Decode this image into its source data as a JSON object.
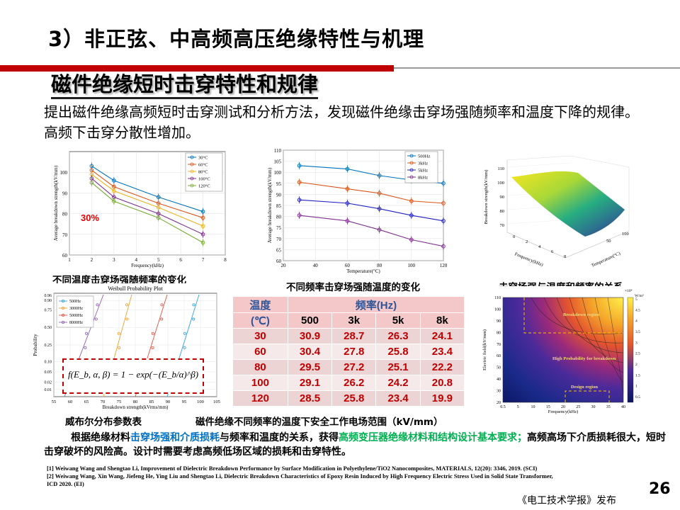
{
  "title": "3）非正弦、中高频高压绝缘特性与机理",
  "subtitle": "磁件绝缘短时击穿特性和规律",
  "intro": "提出磁件绝缘高频短时击穿测试和分析方法，发现磁件绝缘击穿场强随频率和温度下降的规律。高频下击穿分散性增加。",
  "captions": {
    "c1": "不同温度击穿场强随频率的变化",
    "c2": "不同频率击穿场强随温度的变化",
    "c3": "击穿场强与温度和频率的关系",
    "c4": "威布尔分布参数表",
    "c5": "磁件绝缘不同频率的温度下安全工作电场范围（kV/mm）"
  },
  "chart_data": [
    {
      "type": "line",
      "ylabel": "Average breakdown strength(kV/mm)",
      "xlabel": "Frequency(kHz)",
      "xlim": [
        1,
        8
      ],
      "ylim": [
        60,
        110
      ],
      "xticks": [
        "1",
        "2",
        "3",
        "4",
        "5",
        "6",
        "7",
        "8"
      ],
      "yticks": [
        "60",
        "70",
        "80",
        "90",
        "100"
      ],
      "x": [
        2,
        3,
        5,
        7
      ],
      "series": [
        {
          "name": "30°C",
          "color": "#0072bd",
          "values": [
            103,
            96,
            88,
            81
          ]
        },
        {
          "name": "60°C",
          "color": "#d95319",
          "values": [
            101,
            93,
            85,
            78
          ]
        },
        {
          "name": "80°C",
          "color": "#edb120",
          "values": [
            99,
            91,
            83,
            74
          ]
        },
        {
          "name": "100°C",
          "color": "#7e2f8e",
          "values": [
            97,
            88,
            80,
            70
          ]
        },
        {
          "name": "120°C",
          "color": "#77ac30",
          "values": [
            95,
            86,
            78,
            66
          ]
        }
      ],
      "annotation": "30%"
    },
    {
      "type": "line",
      "ylabel": "Average breakdown strength(kV/mm)",
      "xlabel": "Temperature(°C)",
      "xlim": [
        20,
        120
      ],
      "ylim": [
        60,
        110
      ],
      "xticks": [
        "20",
        "40",
        "60",
        "80",
        "100",
        "120"
      ],
      "yticks": [
        "60",
        "65",
        "70",
        "75",
        "80",
        "85",
        "90",
        "95",
        "100",
        "105",
        "110"
      ],
      "x": [
        30,
        60,
        80,
        100,
        120
      ],
      "series": [
        {
          "name": "500Hz",
          "color": "#0072bd",
          "values": [
            103,
            101.5,
            98.5,
            96.5,
            95
          ]
        },
        {
          "name": "3kHz",
          "color": "#d95319",
          "values": [
            95.5,
            92.5,
            90.5,
            87,
            86
          ]
        },
        {
          "name": "5kHz",
          "color": "#2020c0",
          "values": [
            87.5,
            86,
            83.5,
            80.5,
            78
          ]
        },
        {
          "name": "8kHz",
          "color": "#7e2f8e",
          "values": [
            80.5,
            78,
            74,
            69.5,
            66.5
          ]
        }
      ]
    },
    {
      "type": "surface",
      "zlabel": "Breakdown strength(kV/mm)",
      "xlabel": "Temperature(°C)",
      "ylabel": "Frequency(kHz)",
      "zticks": [
        "70",
        "80",
        "90",
        "100",
        "110"
      ],
      "xticks": [
        "50",
        "100"
      ],
      "yticks": [
        "0",
        "2",
        "4",
        "6",
        "8"
      ]
    },
    {
      "type": "scatter",
      "title": "Weibull Probability Plot",
      "xlabel": "Breakdown strength(kVrms/mm)",
      "ylabel": "Probability",
      "xticks": [
        "55",
        "60",
        "65",
        "70",
        "75",
        "80",
        "85",
        "90",
        "95",
        "100",
        "105"
      ],
      "yticks": [
        "0.96",
        "0.90",
        "0.75",
        "0.50",
        "0.25",
        "0.10",
        "0.05",
        "0.02",
        "0.01"
      ],
      "series": [
        {
          "name": "500Hz",
          "color": "#30a0e0"
        },
        {
          "name": "3000Hz",
          "color": "#f0a030"
        },
        {
          "name": "5000Hz",
          "color": "#e05040"
        },
        {
          "name": "8000Hz",
          "color": "#9060b0"
        }
      ]
    },
    {
      "type": "heatmap",
      "xlabel": "Frequency(kHz)",
      "ylabel": "Electric field(kV/mm)",
      "xticks": [
        "0.5",
        "5",
        "10",
        "15",
        "20",
        "25",
        "30",
        "35",
        "40"
      ],
      "yticks": [
        "20",
        "30",
        "40",
        "50",
        "60",
        "70",
        "80",
        "90",
        "100",
        "110"
      ],
      "colorbar": [
        "0.5",
        "1",
        "1.5",
        "2",
        "2.5",
        "3",
        "3.5",
        "4",
        "4.5",
        "5"
      ],
      "colorbar_unit": "W/m³",
      "colorbar_exp": "×10⁴",
      "labels": [
        "Breakdown region",
        "High Probability for breakdown",
        "Design region"
      ]
    }
  ],
  "formula": "f(E_b, α, β) = 1 − exp(−(E_b/α)^β)",
  "table": {
    "temp_header": "温度",
    "temp_unit": "(℃)",
    "freq_header": "频率(Hz)",
    "freqs": [
      "500",
      "3k",
      "5k",
      "8k"
    ],
    "rows": [
      {
        "t": "30",
        "v": [
          "30.9",
          "28.7",
          "26.3",
          "24.1"
        ]
      },
      {
        "t": "60",
        "v": [
          "30.4",
          "27.8",
          "25.8",
          "23.4"
        ]
      },
      {
        "t": "80",
        "v": [
          "29.5",
          "27.2",
          "25.1",
          "22.2"
        ]
      },
      {
        "t": "100",
        "v": [
          "29.1",
          "26.2",
          "24.2",
          "20.8"
        ]
      },
      {
        "t": "120",
        "v": [
          "28.5",
          "25.8",
          "23.4",
          "19.9"
        ]
      }
    ]
  },
  "summary": {
    "p1": "根据绝缘材料",
    "p2": "击穿场强和介质损耗",
    "p3": "与频率和温度的关系，获得",
    "p4": "高频变压器绝缘材料和结构设计基本要求；",
    "p5": "高频高场下介质损耗很大，短时击穿破坏的风险高。设计时需要考虑高频低场区域的损耗和击穿特性。"
  },
  "refs": [
    "[1] Weiwang Wang and Shengtao Li, Improvement of Dielectric Breakdown Performance by Surface Modification in Polyethylene/TiO2 Nanocomposites, MATERIALS, 12(20): 3346, 2019. (SCI)",
    "[2] Weiwang Wang, Xin Wang, Jiefeng He, Ying Liu and Shengtao Li, Dielectric Breakdown Characteristics of Epoxy Resin Induced by High Frequency Electric Stress Used in Solid State Transformer,",
    "ICD 2020. (EI)"
  ],
  "page_number": "26",
  "publisher": "《电工技术学报》发布"
}
